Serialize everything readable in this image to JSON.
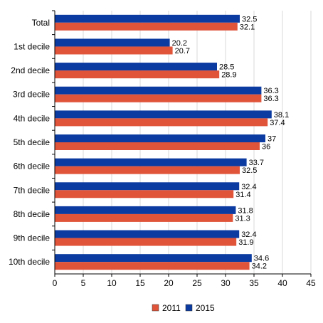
{
  "chart_data": {
    "type": "bar",
    "orientation": "horizontal",
    "categories": [
      "Total",
      "1st decile",
      "2nd decile",
      "3rd decile",
      "4th decile",
      "5th decile",
      "6th decile",
      "7th decile",
      "8th decile",
      "9th decile",
      "10th decile"
    ],
    "series": [
      {
        "name": "2015",
        "color": "#0b3aa0",
        "values": [
          32.5,
          20.2,
          28.5,
          36.3,
          38.1,
          37,
          33.7,
          32.4,
          31.8,
          32.4,
          34.6
        ],
        "labels": [
          "32.5",
          "20.2",
          "28.5",
          "36.3",
          "38.1",
          "37",
          "33.7",
          "32.4",
          "31.8",
          "32.4",
          "34.6"
        ]
      },
      {
        "name": "2011",
        "color": "#e0543a",
        "values": [
          32.1,
          20.7,
          28.9,
          36.3,
          37.4,
          36,
          32.5,
          31.4,
          31.3,
          31.9,
          34.2
        ],
        "labels": [
          "32.1",
          "20.7",
          "28.9",
          "36.3",
          "37.4",
          "36",
          "32.5",
          "31.4",
          "31.3",
          "31.9",
          "34.2"
        ]
      }
    ],
    "legend_order": [
      "2011",
      "2015"
    ],
    "xlim": [
      0,
      45
    ],
    "xticks": [
      "0",
      "5",
      "10",
      "15",
      "20",
      "25",
      "30",
      "35",
      "40",
      "45"
    ],
    "grid": true,
    "legend_position": "bottom-center",
    "title": "",
    "xlabel": "",
    "ylabel": ""
  }
}
